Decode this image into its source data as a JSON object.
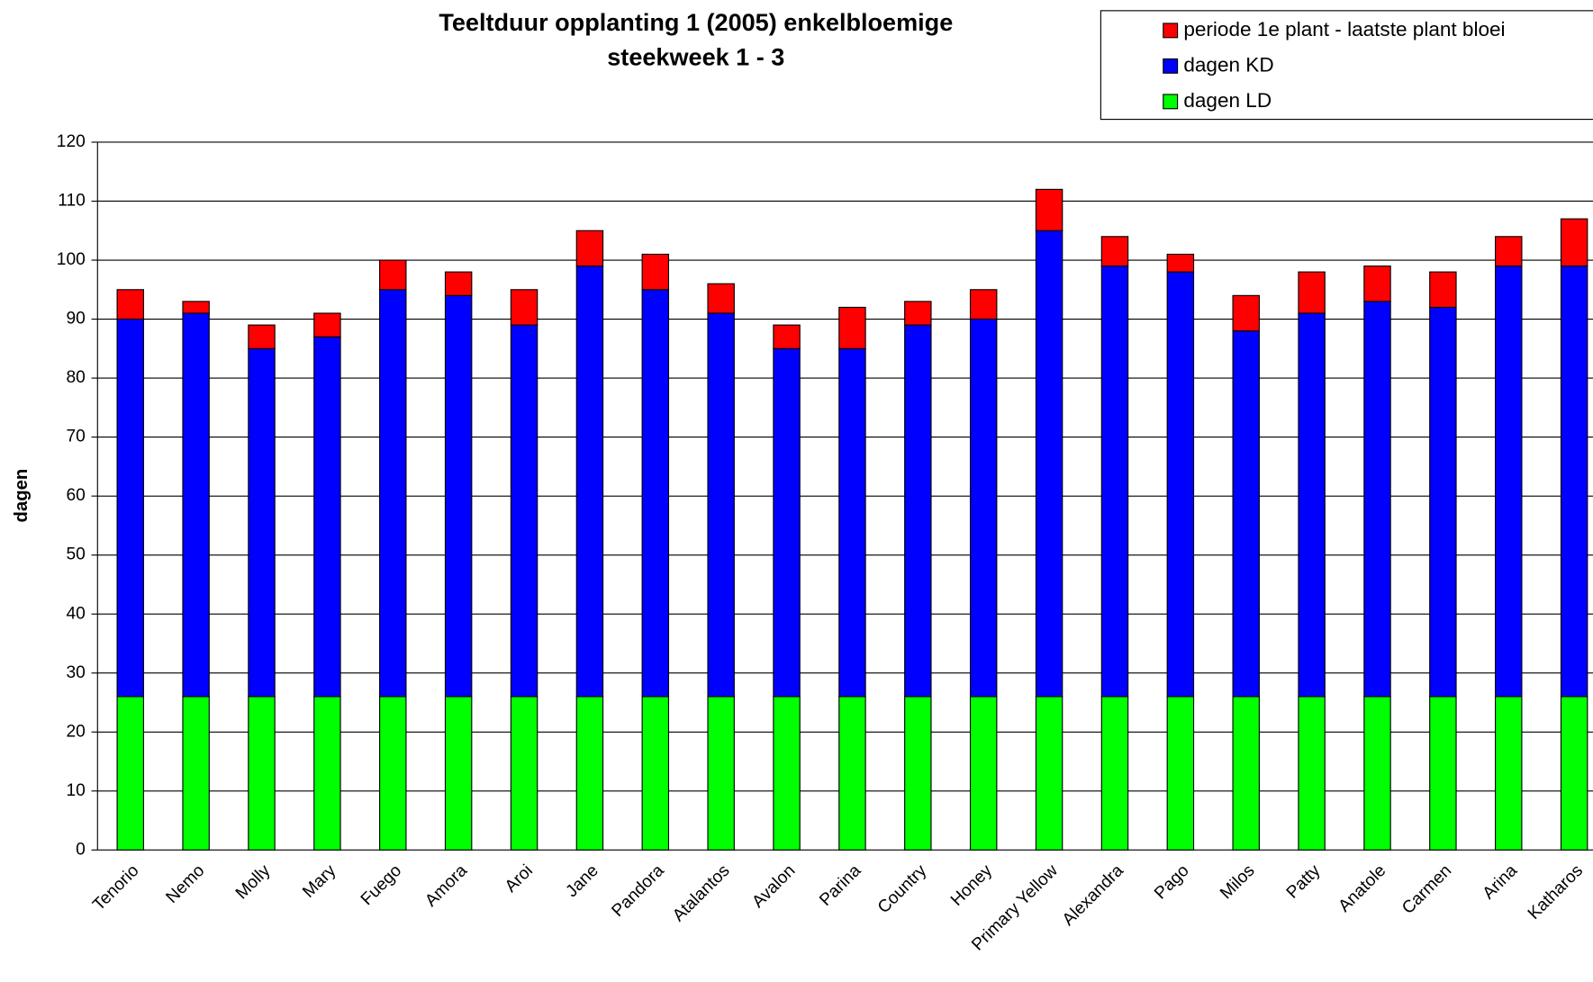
{
  "chart_data": {
    "type": "stacked_bar",
    "title": "Teeltduur opplanting 1 (2005) enkelbloemige",
    "subtitle": "steekweek 1 - 3",
    "y_label": "dagen",
    "categories": [
      "Tenorio",
      "Nemo",
      "Molly",
      "Mary",
      "Fuego",
      "Amora",
      "Aroi",
      "Jane",
      "Pandora",
      "Atalantos",
      "Avalon",
      "Parina",
      "Country",
      "Honey",
      "Primary Yellow",
      "Alexandra",
      "Pago",
      "Milos",
      "Patty",
      "Anatole",
      "Carmen",
      "Arina",
      "Katharos"
    ],
    "series": [
      {
        "name": "dagen LD",
        "color": "#00ff00",
        "values": [
          26,
          26,
          26,
          26,
          26,
          26,
          26,
          26,
          26,
          26,
          26,
          26,
          26,
          26,
          26,
          26,
          26,
          26,
          26,
          26,
          26,
          26,
          26
        ]
      },
      {
        "name": "dagen KD",
        "color": "#0000ff",
        "values": [
          64,
          65,
          59,
          61,
          69,
          68,
          63,
          73,
          69,
          65,
          59,
          59,
          63,
          64,
          79,
          73,
          72,
          62,
          65,
          67,
          66,
          73,
          73
        ]
      },
      {
        "name": "periode 1e plant - laatste plant bloei",
        "color": "#ff0000",
        "values": [
          5,
          2,
          4,
          4,
          5,
          4,
          6,
          6,
          6,
          5,
          4,
          7,
          4,
          5,
          7,
          5,
          3,
          6,
          7,
          6,
          6,
          5,
          8
        ]
      }
    ],
    "ylim": [
      0,
      120
    ],
    "yticks": [
      0,
      10,
      20,
      30,
      40,
      50,
      60,
      70,
      80,
      90,
      100,
      110,
      120
    ],
    "grid": true,
    "legend": "top-right"
  }
}
